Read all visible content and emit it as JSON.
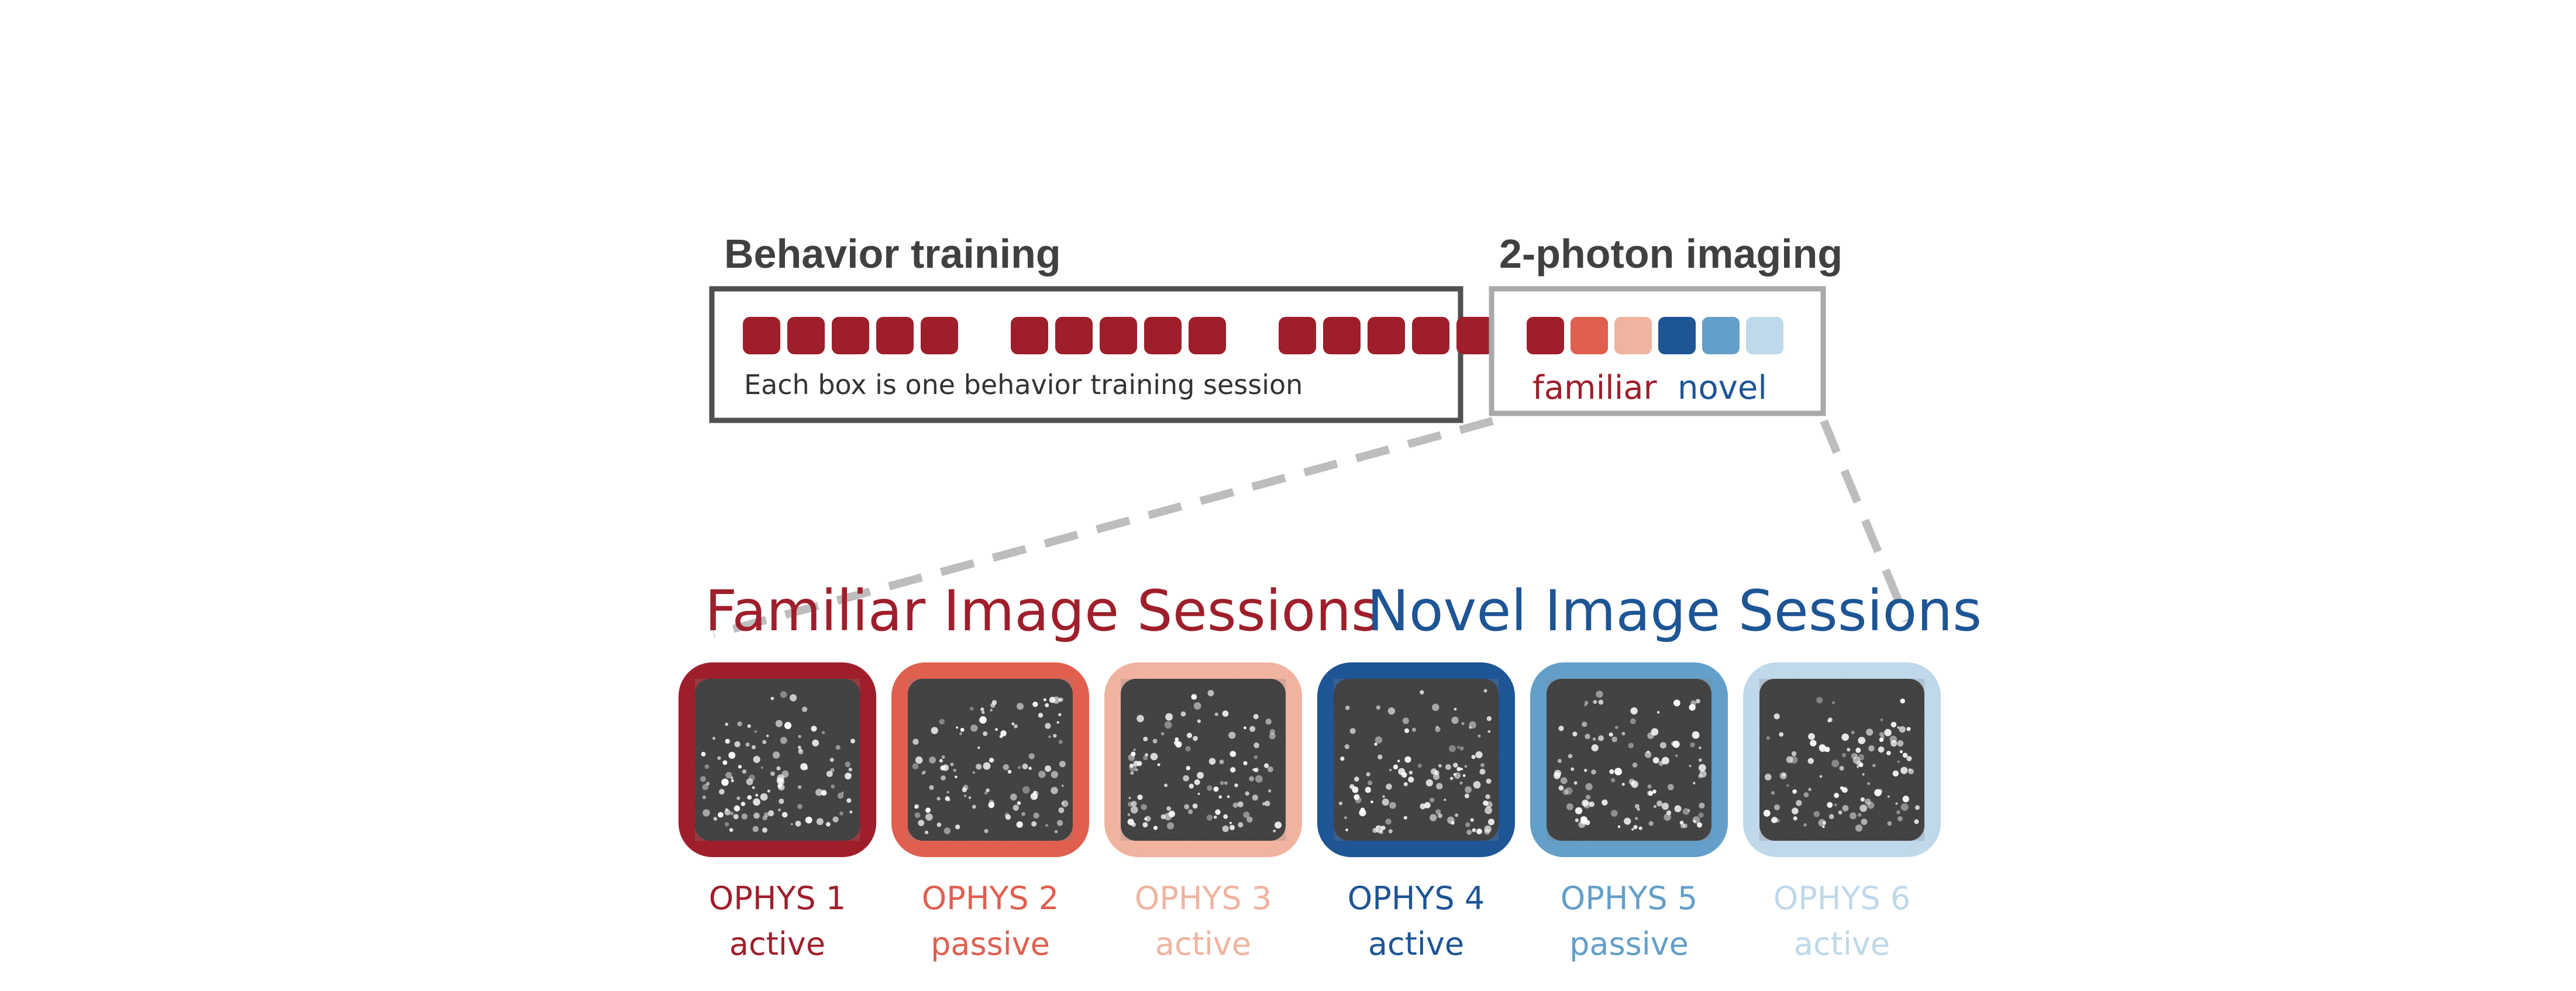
{
  "behavior_training": {
    "title": "Behavior training",
    "caption": "Each box is one behavior training session",
    "session_color": "#9e1f2b",
    "group_sizes": [
      5,
      5,
      5
    ]
  },
  "two_photon": {
    "title": "2-photon imaging",
    "swatches": [
      "#9e1f2b",
      "#e05f4f",
      "#f0b3a0",
      "#1d5595",
      "#639fc9",
      "#bfd8ea"
    ],
    "familiar_label": "familiar",
    "novel_label": "novel",
    "familiar_color": "#9e1f2b",
    "novel_color": "#1d5595"
  },
  "familiar_group": {
    "title": "Familiar Image Sessions",
    "color": "#9e1f2b"
  },
  "novel_group": {
    "title": "Novel Image Sessions",
    "color": "#1d5595"
  },
  "sessions": [
    {
      "name": "OPHYS 1",
      "mode": "active",
      "color": "#9e1f2b"
    },
    {
      "name": "OPHYS 2",
      "mode": "passive",
      "color": "#e05f4f"
    },
    {
      "name": "OPHYS 3",
      "mode": "active",
      "color": "#f0b3a0"
    },
    {
      "name": "OPHYS 4",
      "mode": "active",
      "color": "#1d5595"
    },
    {
      "name": "OPHYS 5",
      "mode": "passive",
      "color": "#639fc9"
    },
    {
      "name": "OPHYS 6",
      "mode": "active",
      "color": "#bfd8ea"
    }
  ],
  "connector_color": "#bdbdbd"
}
